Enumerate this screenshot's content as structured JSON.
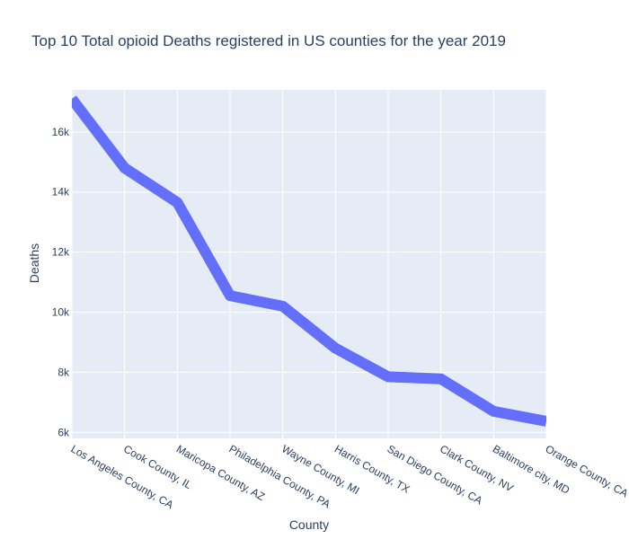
{
  "chart_data": {
    "type": "line",
    "title": "Top 10 Total opioid Deaths registered in US counties for the year 2019",
    "xlabel": "County",
    "ylabel": "Deaths",
    "categories": [
      "Los Angeles County, CA",
      "Cook County, IL",
      "Maricopa County, AZ",
      "Philadelphia County, PA",
      "Wayne County, MI",
      "Harris County, TX",
      "San Diego County, CA",
      "Clark County, NV",
      "Baltimore city, MD",
      "Orange County, CA"
    ],
    "values": [
      17100,
      14800,
      13650,
      10550,
      10200,
      8800,
      7850,
      7780,
      6700,
      6370
    ],
    "ylim": [
      5800,
      17400
    ],
    "yticks": [
      6000,
      8000,
      10000,
      12000,
      14000,
      16000
    ],
    "ytick_labels": [
      "6k",
      "8k",
      "10k",
      "12k",
      "14k",
      "16k"
    ],
    "grid": true,
    "line_color": "#636efa",
    "plot_bg": "#e5ecf6",
    "grid_color": "#ffffff"
  }
}
